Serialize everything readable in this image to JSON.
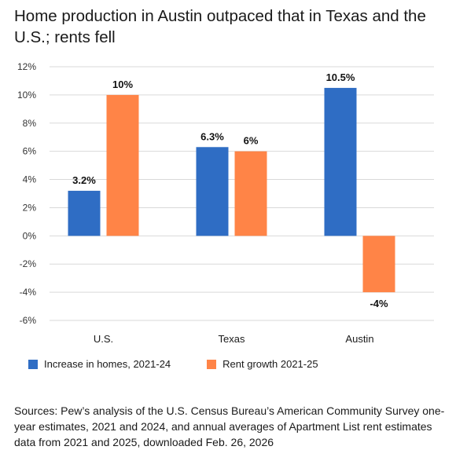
{
  "title": "Home production in Austin outpaced that in Texas and the U.S.; rents fell",
  "source": "Sources: Pew’s analysis of the U.S. Census Bureau’s American Community Survey one-year estimates, 2021 and 2024, and annual averages of Apartment List rent estimates data from 2021 and 2025, downloaded Feb. 26, 2026",
  "colors": {
    "homes": "#2f6dc4",
    "rent": "#ff8447",
    "grid": "#d9d9d9"
  },
  "chart_data": {
    "type": "bar",
    "categories": [
      "U.S.",
      "Texas",
      "Austin"
    ],
    "series": [
      {
        "name": "Increase in homes, 2021-24",
        "values": [
          3.2,
          6.3,
          10.5
        ],
        "labels": [
          "3.2%",
          "6.3%",
          "10.5%"
        ]
      },
      {
        "name": "Rent growth 2021-25",
        "values": [
          10,
          6,
          -4
        ],
        "labels": [
          "10%",
          "6%",
          "-4%"
        ]
      }
    ],
    "ylim": [
      -6,
      12
    ],
    "yticks": [
      12,
      10,
      8,
      6,
      4,
      2,
      0,
      -2,
      -4,
      -6
    ],
    "ytick_labels": [
      "12%",
      "10%",
      "8%",
      "6%",
      "4%",
      "2%",
      "0%",
      "-2%",
      "-4%",
      "-6%"
    ],
    "grid": true,
    "legend_position": "bottom-left"
  }
}
